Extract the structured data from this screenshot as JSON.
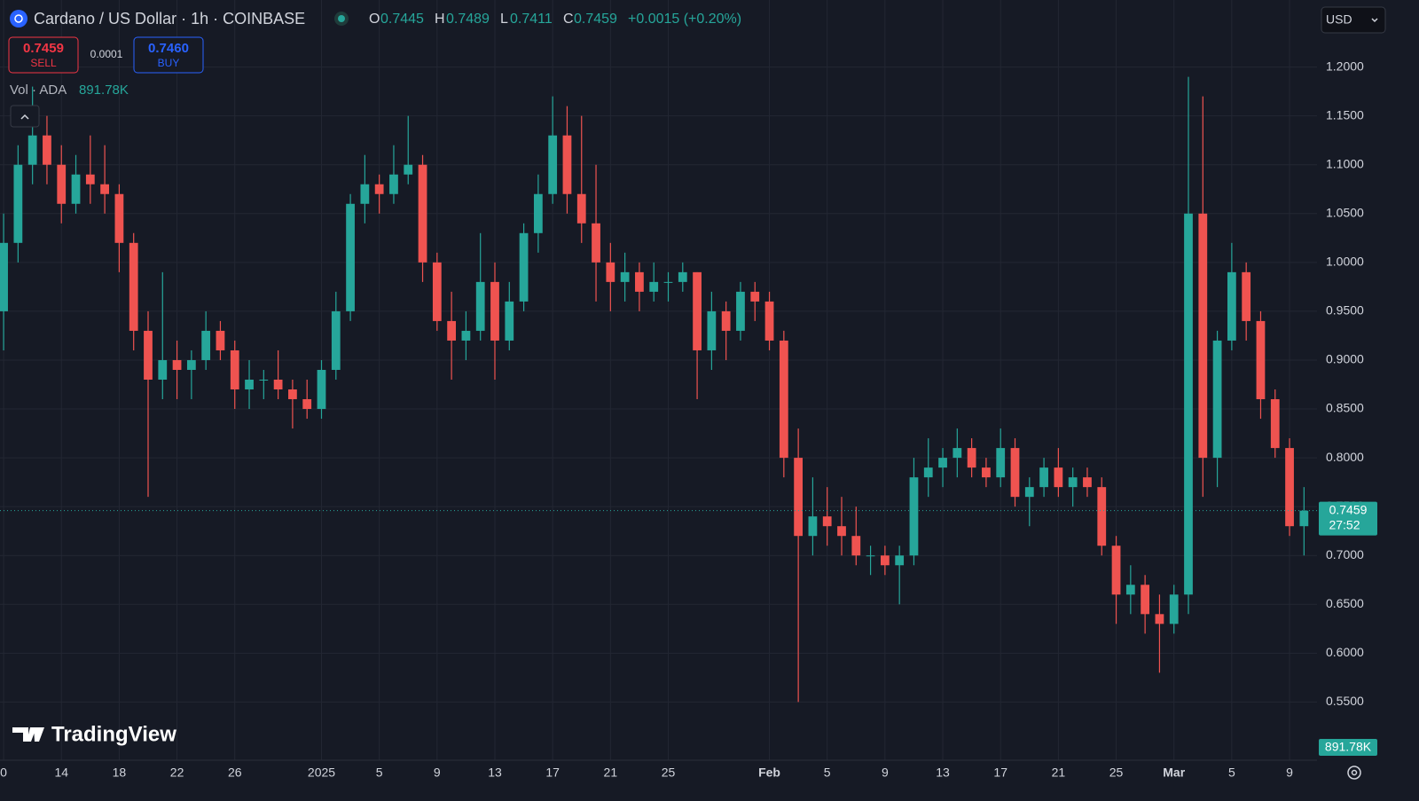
{
  "chart_data": {
    "type": "candlestick",
    "title": "Cardano / US Dollar · 1h · COINBASE",
    "categories": [
      null,
      null,
      null,
      null,
      null,
      null,
      null,
      null,
      null,
      null,
      null,
      null,
      null,
      null,
      null,
      null,
      null,
      null,
      null,
      null,
      null,
      null,
      null,
      null,
      null,
      null,
      null,
      null,
      null,
      null,
      null,
      null,
      null,
      null,
      null,
      null,
      null,
      null,
      null,
      null,
      null,
      null,
      null,
      null,
      null,
      null,
      null,
      null,
      null,
      null,
      null,
      null,
      null,
      null,
      null,
      null,
      null,
      null,
      null,
      null,
      null,
      null,
      null,
      null,
      null,
      null,
      null,
      null,
      null,
      null,
      null,
      null,
      null,
      null,
      null,
      null,
      null,
      null,
      null,
      null,
      null,
      null,
      null,
      null,
      null,
      null,
      null,
      null,
      null,
      null,
      null
    ],
    "open": [
      0.95,
      1.02,
      1.1,
      1.13,
      1.1,
      1.06,
      1.09,
      1.08,
      1.07,
      1.02,
      0.93,
      0.88,
      0.9,
      0.89,
      0.9,
      0.93,
      0.91,
      0.87,
      0.88,
      0.88,
      0.87,
      0.86,
      0.85,
      0.89,
      0.95,
      1.06,
      1.08,
      1.07,
      1.09,
      1.1,
      1.0,
      0.94,
      0.92,
      0.93,
      0.98,
      0.92,
      0.96,
      1.03,
      1.07,
      1.13,
      1.07,
      1.04,
      1.0,
      0.98,
      0.99,
      0.97,
      0.98,
      0.98,
      0.99,
      0.91,
      0.95,
      0.93,
      0.97,
      0.96,
      0.92,
      0.8,
      0.72,
      0.74,
      0.73,
      0.72,
      0.7,
      0.7,
      0.69,
      0.7,
      0.78,
      0.79,
      0.8,
      0.81,
      0.79,
      0.78,
      0.81,
      0.76,
      0.77,
      0.79,
      0.77,
      0.78,
      0.77,
      0.71,
      0.66,
      0.67,
      0.64,
      0.63,
      0.66,
      1.05,
      0.8,
      0.92,
      0.99,
      0.94,
      0.86,
      0.81,
      0.73
    ],
    "high": [
      1.05,
      1.12,
      1.18,
      1.15,
      1.12,
      1.11,
      1.13,
      1.12,
      1.08,
      1.03,
      0.95,
      0.99,
      0.92,
      0.91,
      0.95,
      0.94,
      0.92,
      0.9,
      0.89,
      0.91,
      0.88,
      0.88,
      0.9,
      0.97,
      1.07,
      1.11,
      1.09,
      1.12,
      1.15,
      1.11,
      1.01,
      0.97,
      0.95,
      1.03,
      1.0,
      0.98,
      1.04,
      1.09,
      1.17,
      1.16,
      1.15,
      1.1,
      1.02,
      1.01,
      1.0,
      1.0,
      0.99,
      1.0,
      0.99,
      0.97,
      0.96,
      0.98,
      0.98,
      0.97,
      0.93,
      0.83,
      0.78,
      0.77,
      0.76,
      0.75,
      0.71,
      0.71,
      0.71,
      0.8,
      0.82,
      0.81,
      0.83,
      0.82,
      0.8,
      0.83,
      0.82,
      0.78,
      0.8,
      0.81,
      0.79,
      0.79,
      0.78,
      0.72,
      0.69,
      0.68,
      0.66,
      0.67,
      1.19,
      1.17,
      0.93,
      1.02,
      1.0,
      0.95,
      0.87,
      0.82,
      0.77
    ],
    "low": [
      0.91,
      1.0,
      1.08,
      1.08,
      1.04,
      1.05,
      1.06,
      1.05,
      0.99,
      0.91,
      0.76,
      0.86,
      0.86,
      0.86,
      0.89,
      0.9,
      0.85,
      0.85,
      0.86,
      0.86,
      0.83,
      0.84,
      0.84,
      0.88,
      0.94,
      1.04,
      1.05,
      1.06,
      1.08,
      0.98,
      0.93,
      0.88,
      0.9,
      0.92,
      0.88,
      0.91,
      0.95,
      1.01,
      1.06,
      1.05,
      1.02,
      0.96,
      0.95,
      0.96,
      0.95,
      0.96,
      0.96,
      0.97,
      0.86,
      0.89,
      0.9,
      0.92,
      0.94,
      0.91,
      0.78,
      0.55,
      0.7,
      0.71,
      0.7,
      0.69,
      0.68,
      0.68,
      0.65,
      0.69,
      0.76,
      0.77,
      0.78,
      0.78,
      0.77,
      0.77,
      0.75,
      0.73,
      0.76,
      0.76,
      0.75,
      0.76,
      0.7,
      0.63,
      0.64,
      0.62,
      0.58,
      0.62,
      0.64,
      0.76,
      0.77,
      0.91,
      0.92,
      0.84,
      0.8,
      0.72,
      0.7
    ],
    "close": [
      1.02,
      1.1,
      1.13,
      1.1,
      1.06,
      1.09,
      1.08,
      1.07,
      1.02,
      0.93,
      0.88,
      0.9,
      0.89,
      0.9,
      0.93,
      0.91,
      0.87,
      0.88,
      0.88,
      0.87,
      0.86,
      0.85,
      0.89,
      0.95,
      1.06,
      1.08,
      1.07,
      1.09,
      1.1,
      1.0,
      0.94,
      0.92,
      0.93,
      0.98,
      0.92,
      0.96,
      1.03,
      1.07,
      1.13,
      1.07,
      1.04,
      1.0,
      0.98,
      0.99,
      0.97,
      0.98,
      0.98,
      0.99,
      0.91,
      0.95,
      0.93,
      0.97,
      0.96,
      0.92,
      0.8,
      0.72,
      0.74,
      0.73,
      0.72,
      0.7,
      0.7,
      0.69,
      0.7,
      0.78,
      0.79,
      0.8,
      0.81,
      0.79,
      0.78,
      0.81,
      0.76,
      0.77,
      0.79,
      0.77,
      0.78,
      0.77,
      0.71,
      0.66,
      0.67,
      0.64,
      0.63,
      0.66,
      1.05,
      0.8,
      0.92,
      0.99,
      0.94,
      0.86,
      0.81,
      0.73,
      0.7459
    ],
    "up_color": "#26a69a",
    "down_color": "#ef5350",
    "ylim": [
      0.495,
      1.265
    ],
    "yticks": [
      {
        "value": 0.55,
        "label": "0.5500"
      },
      {
        "value": 0.6,
        "label": "0.6000"
      },
      {
        "value": 0.65,
        "label": "0.6500"
      },
      {
        "value": 0.7,
        "label": "0.7000"
      },
      {
        "value": 0.75,
        "label": "0.7500"
      },
      {
        "value": 0.8,
        "label": "0.8000"
      },
      {
        "value": 0.85,
        "label": "0.8500"
      },
      {
        "value": 0.9,
        "label": "0.9000"
      },
      {
        "value": 0.95,
        "label": "0.9500"
      },
      {
        "value": 1.0,
        "label": "1.0000"
      },
      {
        "value": 1.05,
        "label": "1.0500"
      },
      {
        "value": 1.1,
        "label": "1.1000"
      },
      {
        "value": 1.15,
        "label": "1.1500"
      },
      {
        "value": 1.2,
        "label": "1.2000"
      }
    ],
    "xlim": [
      -0.25,
      90.9
    ],
    "xticks": [
      0,
      {
        "value": 4,
        "label": "14"
      },
      {
        "value": 8,
        "label": "18"
      },
      {
        "value": 12,
        "label": "22"
      },
      {
        "value": 16,
        "label": "26"
      },
      {
        "value": 22,
        "label": "2025"
      },
      {
        "value": 26,
        "label": "5"
      },
      {
        "value": 30,
        "label": "9"
      },
      {
        "value": 34,
        "label": "13"
      },
      {
        "value": 38,
        "label": "17"
      },
      {
        "value": 42,
        "label": "21"
      },
      {
        "value": 46,
        "label": "25"
      },
      {
        "value": 53,
        "label": "Feb"
      },
      {
        "value": 57,
        "label": "5"
      },
      {
        "value": 61,
        "label": "9"
      },
      {
        "value": 65,
        "label": "13"
      },
      {
        "value": 69,
        "label": "17"
      },
      {
        "value": 73,
        "label": "21"
      },
      {
        "value": 77,
        "label": "25"
      },
      {
        "value": 81,
        "label": "Mar"
      },
      {
        "value": 85,
        "label": "5"
      },
      {
        "value": 89,
        "label": "9"
      }
    ],
    "grid": true,
    "last_price": 0.7459
  },
  "legend": {
    "o_label": "O",
    "open": "0.7445",
    "h_label": "H",
    "high": "0.7489",
    "l_label": "L",
    "low": "0.7411",
    "c_label": "C",
    "close": "0.7459",
    "change": "+0.0015 (+0.20%)"
  },
  "trade": {
    "sell_price": "0.7459",
    "sell": "SELL",
    "spread": "0.0001",
    "buy_price": "0.7460",
    "buy": "BUY"
  },
  "volume": {
    "label": "Vol · ADA",
    "value": "891.78K",
    "tag": "891.78K"
  },
  "currency": "USD",
  "countdown": "27:52",
  "logo": "TradingView"
}
